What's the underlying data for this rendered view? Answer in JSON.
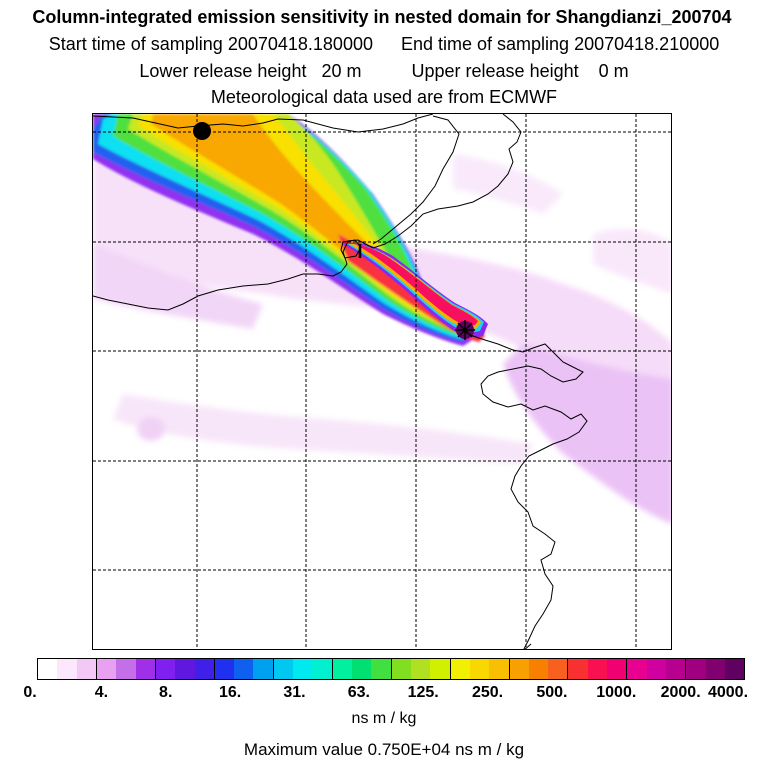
{
  "header": {
    "title": "Column-integrated emission sensitivity in nested domain for Shangdianzi_200704",
    "start_label": "Start time of sampling",
    "start_value": "20070418.180000",
    "end_label": "End time of sampling",
    "end_value": "20070418.210000",
    "lower_label": "Lower release height",
    "lower_value": "20 m",
    "upper_label": "Upper release height",
    "upper_value": "0 m",
    "met_line": "Meteorological data used are from ECMWF"
  },
  "legend": {
    "tick_labels": [
      "0.",
      "4.",
      "8.",
      "16.",
      "31.",
      "63.",
      "125.",
      "250.",
      "500.",
      "1000.",
      "2000.",
      "4000."
    ],
    "colors": [
      "#ffffff",
      "#fce8fc",
      "#f4c8f4",
      "#e8a0f0",
      "#c46ee8",
      "#a030e8",
      "#8020f0",
      "#6018e0",
      "#4020e8",
      "#2030f0",
      "#1060f0",
      "#00a0f0",
      "#00c8f0",
      "#00e8f0",
      "#00f0d0",
      "#00f0a0",
      "#00e070",
      "#40e040",
      "#80e020",
      "#b0e020",
      "#d0f000",
      "#f0f000",
      "#f8d800",
      "#f8c000",
      "#f8a000",
      "#f88000",
      "#f86020",
      "#f83030",
      "#f81050",
      "#f00070",
      "#e80090",
      "#d000a0",
      "#b80090",
      "#a00080",
      "#800070",
      "#600060"
    ],
    "unit": "ns m / kg",
    "max_text": "Maximum value  0.750E+04 ns m / kg"
  },
  "map": {
    "plume_colors": {
      "outer": "#f0d0f8",
      "purple": "#8020f0",
      "blue": "#2050f0",
      "cyan": "#00e8f0",
      "green": "#40e040",
      "yellowgreen": "#c0e020",
      "yellow": "#f8e000",
      "orange": "#f8b000",
      "darkorange": "#f88000",
      "red": "#f82040",
      "magenta": "#f00080",
      "core": "#600060"
    }
  }
}
